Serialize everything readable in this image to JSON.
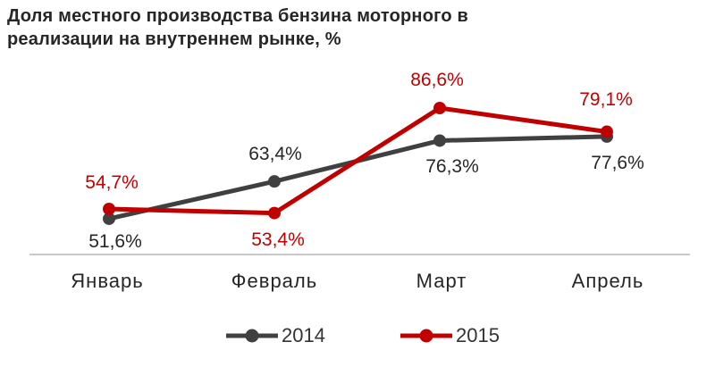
{
  "title": {
    "line1": "Доля  местного производства  бензина моторного  в",
    "line2": "реализации на внутреннем рынке, %"
  },
  "chart_data": {
    "type": "line",
    "title": "Доля местного производства бензина моторного в реализации на внутреннем рынке, %",
    "categories": [
      "Январь",
      "Февраль",
      "Март",
      "Апрель"
    ],
    "series": [
      {
        "name": "2014",
        "color": "#404040",
        "label_color": "#262626",
        "values": [
          51.6,
          63.4,
          76.3,
          77.6
        ],
        "labels": [
          "51,6%",
          "63,4%",
          "76,3%",
          "77,6%"
        ]
      },
      {
        "name": "2015",
        "color": "#c00000",
        "label_color": "#c00000",
        "values": [
          54.7,
          53.4,
          86.6,
          79.1
        ],
        "labels": [
          "54,7%",
          "53,4%",
          "86,6%",
          "79,1%"
        ]
      }
    ],
    "ylim": [
      45,
      95
    ],
    "grid": false,
    "legend_position": "bottom",
    "axis_line_color": "#c9c9c9",
    "value_format": "percent-comma"
  }
}
